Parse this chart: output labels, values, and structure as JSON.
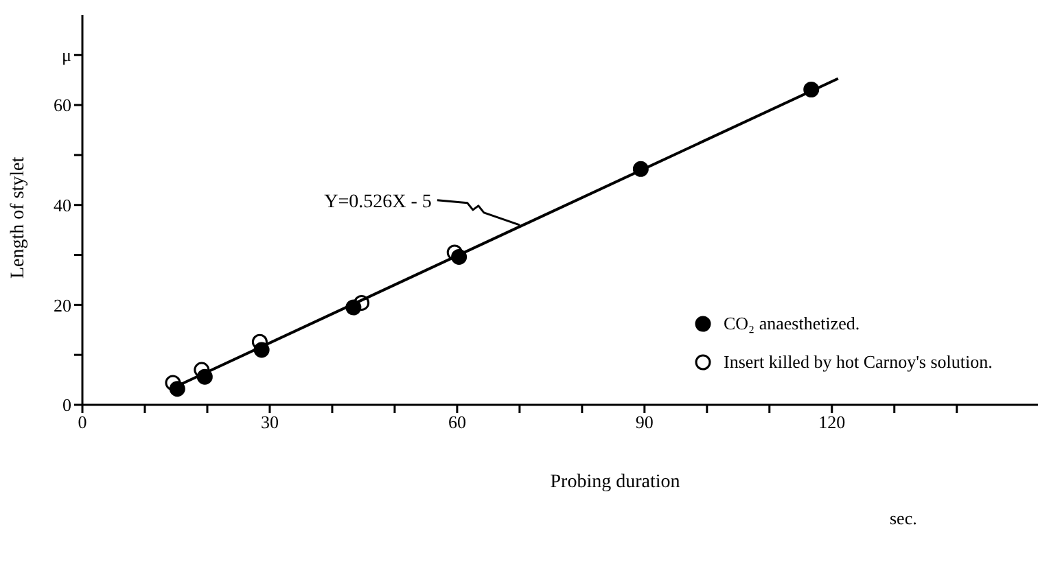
{
  "chart_data": {
    "type": "scatter",
    "xlabel": "Probing duration",
    "ylabel": "Length of stylet",
    "xlim": [
      0,
      153
    ],
    "ylim": [
      0,
      78
    ],
    "xticks": [
      0,
      {
        "value": 10,
        "label": null
      },
      {
        "value": 20,
        "label": null
      },
      30,
      {
        "value": 40,
        "label": null
      },
      {
        "value": 50,
        "label": null
      },
      60,
      {
        "value": 70,
        "label": null
      },
      {
        "value": 80,
        "label": null
      },
      90,
      {
        "value": 100,
        "label": null
      },
      {
        "value": 110,
        "label": null
      },
      120,
      {
        "value": 130,
        "label": null
      },
      {
        "value": 140,
        "label": null
      }
    ],
    "yticks": [
      0,
      {
        "value": 10,
        "label": null
      },
      20,
      {
        "value": 30,
        "label": null
      },
      40,
      {
        "value": 50,
        "label": null
      },
      60,
      {
        "value": 70,
        "label": "μ"
      }
    ],
    "legend": "right",
    "marker": "circle",
    "series": [
      {
        "name": "CO₂ anaesthetized.",
        "color": "#000000",
        "x": [
          15.2,
          19.6,
          28.7,
          43.4,
          60.3,
          89.4,
          116.7
        ],
        "values": [
          3.2,
          5.6,
          11,
          19.5,
          29.6,
          47.2,
          63.1
        ]
      },
      {
        "name": "Insert killed by hot Carnoy's solution.",
        "color": "#000000",
        "x": [
          14.5,
          19.1,
          28.4,
          44.7,
          59.6
        ],
        "values": [
          4.4,
          7,
          12.6,
          20.4,
          30.5
        ]
      },
      {
        "type": "line",
        "color": "#000000",
        "marker": "none",
        "line_style": "solid",
        "x": [
          14.7,
          121
        ],
        "values": [
          3.5,
          65.3
        ]
      }
    ],
    "annotations": [
      {
        "text": "Y=0.526X - 5",
        "x": 70,
        "y": 36
      },
      "sec."
    ]
  }
}
